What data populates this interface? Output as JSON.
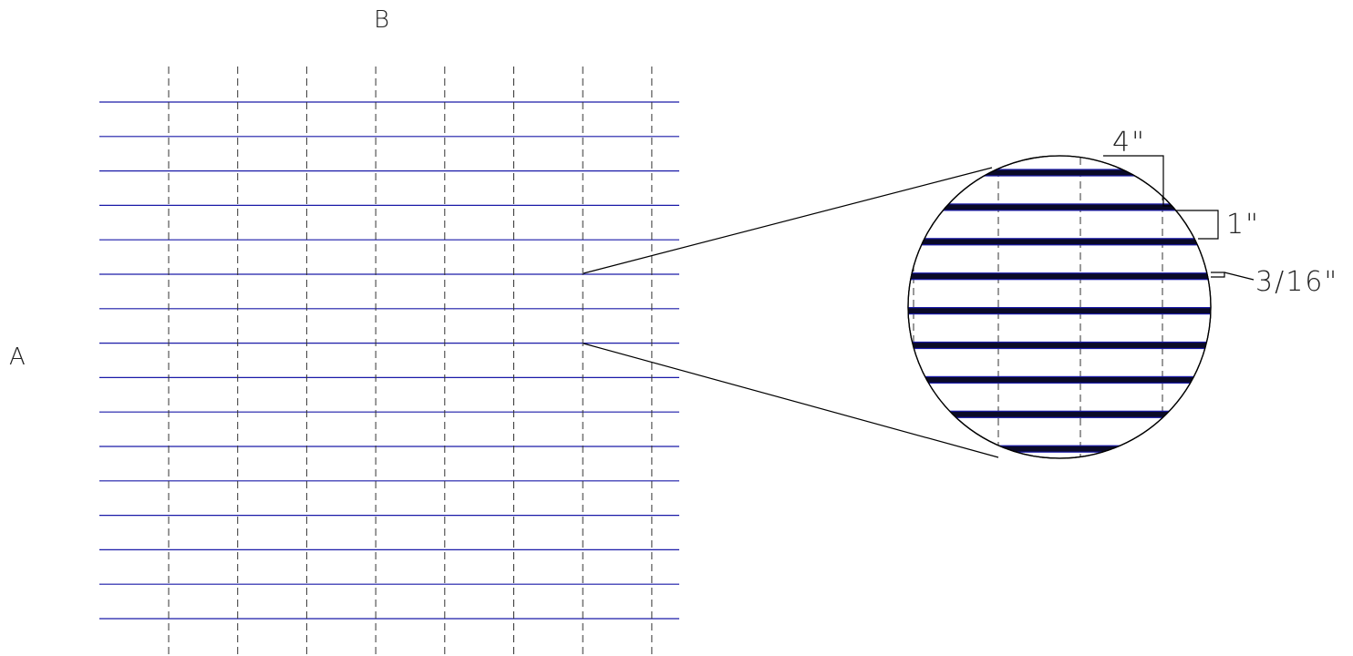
{
  "labels": {
    "axis_a": "A",
    "axis_b": "B",
    "dim_spacing": "4\"",
    "dim_depth": "1\"",
    "dim_thickness": "3/16\""
  },
  "colors": {
    "bar": "#1a1aa8",
    "bar_fill": "#0a0a28",
    "line": "#000000",
    "dash": "#333333"
  },
  "icons": {
    "detail": "magnified-detail-circle"
  },
  "grid": {
    "horizontal_bar_count": 16,
    "vertical_crossbar_count": 8
  },
  "detail": {
    "bar_count": 9,
    "crossbar_count": 3
  }
}
